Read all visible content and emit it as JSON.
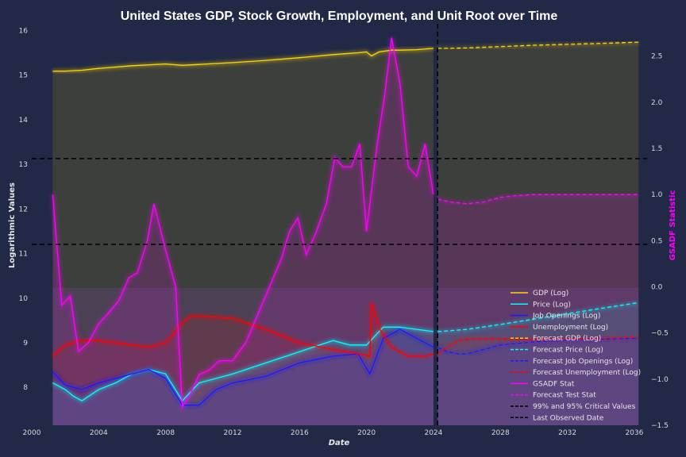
{
  "chart_data": {
    "type": "line",
    "title": "United States GDP, Stock Growth, Employment, and Unit Root over Time",
    "xlabel": "Date",
    "ylabel": "Logarithmic Values",
    "y2label": "GSADF Statistic",
    "xlim": [
      2000,
      2037
    ],
    "ylim": [
      7.15,
      16.15
    ],
    "y2lim": [
      -1.5,
      2.85
    ],
    "x_ticks": [
      2000,
      2004,
      2008,
      2012,
      2016,
      2020,
      2024,
      2028,
      2032,
      2036
    ],
    "y_ticks": [
      8,
      9,
      10,
      11,
      12,
      13,
      14,
      15,
      16
    ],
    "y2_ticks": [
      "-1.5",
      "-1.0",
      "-0.5",
      "0.0",
      "0.5",
      "1.0",
      "1.5",
      "2.0",
      "2.5"
    ],
    "critical_values": [
      1.39,
      0.46
    ],
    "last_observed_date": 2024.25,
    "legend_position": "lower right",
    "colors": {
      "background": "#212946",
      "gdp": "#ffd700",
      "price": "#00ffff",
      "jobs": "#1a1aff",
      "unemployment": "#ff0000",
      "gsadf": "#ff00ff",
      "reference": "#000000"
    },
    "series": [
      {
        "name": "GDP (Log)",
        "axis": "left",
        "style": "solid",
        "x": [
          2001.25,
          2002,
          2003,
          2004,
          2006,
          2008,
          2009,
          2010,
          2012,
          2014,
          2016,
          2018,
          2019.5,
          2020,
          2020.3,
          2020.75,
          2021.5,
          2022,
          2023,
          2024
        ],
        "y": [
          15.09,
          15.09,
          15.11,
          15.15,
          15.21,
          15.25,
          15.22,
          15.24,
          15.28,
          15.33,
          15.39,
          15.46,
          15.5,
          15.52,
          15.43,
          15.52,
          15.56,
          15.56,
          15.57,
          15.6
        ]
      },
      {
        "name": "Price (Log)",
        "axis": "left",
        "style": "solid",
        "x": [
          2001.25,
          2002,
          2002.5,
          2003,
          2004,
          2005,
          2006,
          2007,
          2008,
          2009,
          2010,
          2012,
          2014,
          2016,
          2018,
          2019,
          2020,
          2021,
          2022,
          2023,
          2024
        ],
        "y": [
          8.1,
          7.95,
          7.8,
          7.7,
          7.95,
          8.1,
          8.3,
          8.4,
          8.3,
          7.7,
          8.1,
          8.3,
          8.55,
          8.8,
          9.05,
          8.95,
          8.95,
          9.35,
          9.35,
          9.3,
          9.25
        ]
      },
      {
        "name": "Job Openings (Log)",
        "axis": "left",
        "style": "solid",
        "x": [
          2001.25,
          2002,
          2003,
          2004,
          2005,
          2006,
          2007,
          2008,
          2009,
          2010,
          2011,
          2012,
          2014,
          2016,
          2018,
          2019.5,
          2020.2,
          2020.5,
          2021,
          2022,
          2023,
          2024
        ],
        "y": [
          8.35,
          8.05,
          7.95,
          8.1,
          8.2,
          8.3,
          8.4,
          8.2,
          7.6,
          7.6,
          7.95,
          8.1,
          8.25,
          8.55,
          8.7,
          8.75,
          8.3,
          8.6,
          9.1,
          9.3,
          9.1,
          8.9
        ]
      },
      {
        "name": "Unemployment (Log)",
        "axis": "left",
        "style": "solid",
        "x": [
          2001.25,
          2002,
          2003,
          2004,
          2006,
          2007,
          2008,
          2009,
          2009.5,
          2010,
          2012,
          2014,
          2016,
          2018,
          2019.5,
          2020.2,
          2020.3,
          2020.8,
          2021.5,
          2022.5,
          2023.5,
          2024
        ],
        "y": [
          8.7,
          8.95,
          9.05,
          9.05,
          8.95,
          8.9,
          9.0,
          9.45,
          9.6,
          9.6,
          9.55,
          9.3,
          9.0,
          8.85,
          8.75,
          8.7,
          9.9,
          9.3,
          8.9,
          8.7,
          8.7,
          8.75
        ]
      },
      {
        "name": "GSADF Stat",
        "axis": "right",
        "style": "solid",
        "x": [
          2001.25,
          2001.8,
          2002.3,
          2002.8,
          2003.4,
          2004,
          2004.5,
          2005.2,
          2005.8,
          2006.3,
          2006.9,
          2007.3,
          2008,
          2008.6,
          2009,
          2009.5,
          2010,
          2010.6,
          2011.2,
          2012,
          2012.8,
          2013.5,
          2014.2,
          2014.9,
          2015.4,
          2015.9,
          2016.4,
          2017,
          2017.6,
          2018.1,
          2018.6,
          2019.1,
          2019.6,
          2020,
          2020.6,
          2021.1,
          2021.5,
          2022,
          2022.5,
          2023,
          2023.5,
          2024
        ],
        "y": [
          1.0,
          -0.2,
          -0.1,
          -0.7,
          -0.6,
          -0.4,
          -0.3,
          -0.15,
          0.1,
          0.15,
          0.5,
          0.9,
          0.4,
          0.0,
          -1.3,
          -1.15,
          -0.95,
          -0.9,
          -0.8,
          -0.8,
          -0.6,
          -0.3,
          0.0,
          0.3,
          0.6,
          0.75,
          0.35,
          0.6,
          0.9,
          1.4,
          1.3,
          1.3,
          1.55,
          0.6,
          1.5,
          2.1,
          2.7,
          2.2,
          1.3,
          1.2,
          1.55,
          1.0
        ]
      },
      {
        "name": "Forecast GDP (Log)",
        "axis": "left",
        "style": "dashed",
        "x": [
          2024.25,
          2025,
          2026,
          2028,
          2030,
          2032,
          2034,
          2036.25
        ],
        "y": [
          15.6,
          15.6,
          15.61,
          15.64,
          15.67,
          15.69,
          15.71,
          15.74
        ]
      },
      {
        "name": "Forecast Price (Log)",
        "axis": "left",
        "style": "dashed",
        "x": [
          2024.25,
          2025,
          2026,
          2028,
          2030,
          2032,
          2034,
          2036.25
        ],
        "y": [
          9.25,
          9.27,
          9.3,
          9.41,
          9.53,
          9.65,
          9.77,
          9.9
        ]
      },
      {
        "name": "Forecast Job Openings (Log)",
        "axis": "left",
        "style": "dashed",
        "x": [
          2024.25,
          2024.8,
          2025.5,
          2026,
          2027,
          2028,
          2030,
          2032,
          2034,
          2036.25
        ],
        "y": [
          8.9,
          8.8,
          8.75,
          8.75,
          8.85,
          8.95,
          9.02,
          9.06,
          9.08,
          9.1
        ]
      },
      {
        "name": "Forecast Unemployment (Log)",
        "axis": "left",
        "style": "dashed",
        "x": [
          2024.25,
          2024.8,
          2025.5,
          2026.5,
          2028,
          2030,
          2032,
          2034,
          2036.25
        ],
        "y": [
          8.75,
          8.9,
          9.05,
          9.1,
          9.08,
          9.07,
          9.08,
          9.1,
          9.12
        ]
      },
      {
        "name": "Forecast Test Stat",
        "axis": "right",
        "style": "dashed",
        "x": [
          2024.25,
          2025,
          2026,
          2027,
          2028,
          2029,
          2030,
          2032,
          2034,
          2036.25
        ],
        "y": [
          0.95,
          0.92,
          0.9,
          0.92,
          0.97,
          0.99,
          1.0,
          1.0,
          1.0,
          1.0
        ]
      }
    ],
    "legend": [
      {
        "label": "GDP (Log)",
        "color": "#ffd700",
        "dash": false
      },
      {
        "label": "Price (Log)",
        "color": "#00ffff",
        "dash": false
      },
      {
        "label": "Job Openings (Log)",
        "color": "#1a1aff",
        "dash": false
      },
      {
        "label": "Unemployment (Log)",
        "color": "#ff0000",
        "dash": false
      },
      {
        "label": "Forecast GDP (Log)",
        "color": "#ffd700",
        "dash": true
      },
      {
        "label": "Forecast Price (Log)",
        "color": "#00ffff",
        "dash": true
      },
      {
        "label": "Forecast Job Openings (Log)",
        "color": "#1a1aff",
        "dash": true
      },
      {
        "label": "Forecast Unemployment (Log)",
        "color": "#ff0000",
        "dash": true
      },
      {
        "label": "GSADF Stat",
        "color": "#ff00ff",
        "dash": false
      },
      {
        "label": "Forecast Test Stat",
        "color": "#ff00ff",
        "dash": true
      },
      {
        "label": "99% and 95% Critical Values",
        "color": "#000000",
        "dash": true
      },
      {
        "label": "Last Observed Date",
        "color": "#000000",
        "dash": true
      }
    ]
  }
}
